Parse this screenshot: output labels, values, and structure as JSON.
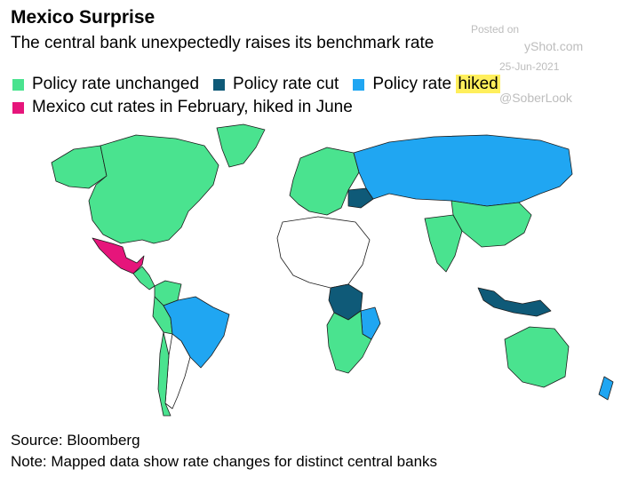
{
  "header": {
    "title": "Mexico Surprise",
    "subtitle": "The central bank unexpectedly raises its benchmark rate"
  },
  "legend": {
    "unchanged": {
      "label": "Policy rate unchanged",
      "color": "#4ae38f"
    },
    "cut": {
      "label": "Policy rate cut",
      "color": "#0f5a78"
    },
    "hiked": {
      "label_prefix": "Policy rate ",
      "label_highlight": "hiked",
      "color": "#20a6f2"
    },
    "mexico": {
      "label": "Mexico cut rates in February, hiked in June",
      "color": "#e6157b"
    }
  },
  "watermark": {
    "line1": "Posted on",
    "line2": "yShot.com",
    "line3": "25-Jun-2021",
    "line4": "@SoberLook"
  },
  "footer": {
    "source": "Source: Bloomberg",
    "note": "Note: Mapped data show rate changes for distinct central banks"
  },
  "map": {
    "colors": {
      "unchanged": "#4ae38f",
      "cut": "#0f5a78",
      "hiked": "#20a6f2",
      "mexico": "#e6157b",
      "no_data": "#ffffff"
    },
    "regions": [
      {
        "name": "canada-us",
        "status": "unchanged"
      },
      {
        "name": "alaska",
        "status": "unchanged"
      },
      {
        "name": "greenland",
        "status": "unchanged"
      },
      {
        "name": "mexico",
        "status": "mexico"
      },
      {
        "name": "central-america",
        "status": "unchanged"
      },
      {
        "name": "colombia",
        "status": "unchanged"
      },
      {
        "name": "brazil",
        "status": "hiked"
      },
      {
        "name": "peru",
        "status": "unchanged"
      },
      {
        "name": "chile",
        "status": "unchanged"
      },
      {
        "name": "argentina",
        "status": "no_data"
      },
      {
        "name": "europe",
        "status": "unchanged"
      },
      {
        "name": "russia",
        "status": "hiked"
      },
      {
        "name": "ukraine",
        "status": "cut"
      },
      {
        "name": "north-africa",
        "status": "no_data"
      },
      {
        "name": "dr-congo",
        "status": "cut"
      },
      {
        "name": "mozambique",
        "status": "hiked"
      },
      {
        "name": "southern-africa",
        "status": "unchanged"
      },
      {
        "name": "india",
        "status": "unchanged"
      },
      {
        "name": "china",
        "status": "unchanged"
      },
      {
        "name": "indonesia",
        "status": "cut"
      },
      {
        "name": "australia",
        "status": "unchanged"
      },
      {
        "name": "new-zealand",
        "status": "hiked"
      }
    ]
  }
}
